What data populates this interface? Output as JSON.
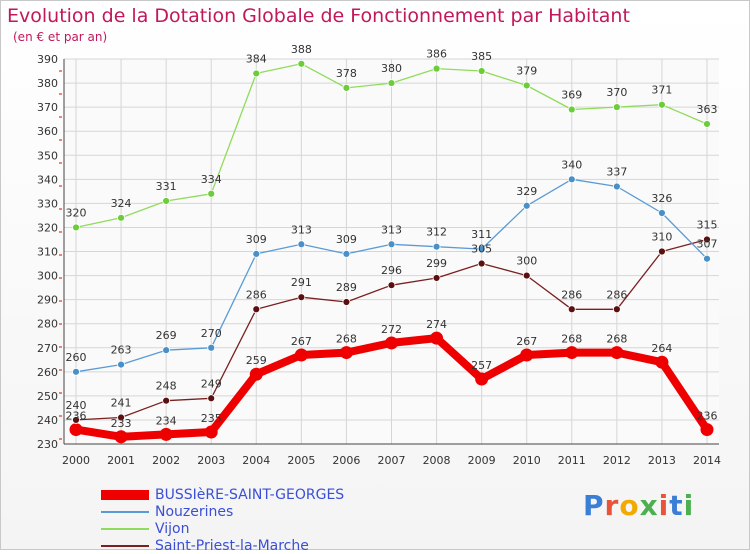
{
  "header": {
    "title": "Evolution de la Dotation Globale de Fonctionnement par Habitant",
    "subtitle": "(en € et par an)"
  },
  "logo": {
    "text": "Proxiti",
    "colors": [
      "#3a7fd5",
      "#e8533a",
      "#f2a900",
      "#4caf50",
      "#e8533a",
      "#3a7fd5",
      "#4caf50"
    ]
  },
  "chart_data": {
    "type": "line",
    "x": [
      "2000",
      "2001",
      "2002",
      "2003",
      "2004",
      "2005",
      "2006",
      "2007",
      "2008",
      "2009",
      "2010",
      "2011",
      "2012",
      "2013",
      "2014"
    ],
    "ylim": [
      230,
      390
    ],
    "yticks": [
      230,
      240,
      250,
      260,
      270,
      280,
      290,
      300,
      310,
      320,
      330,
      340,
      350,
      360,
      370,
      380,
      390
    ],
    "grid": true,
    "legend_position": "bottom-left",
    "series": [
      {
        "name": "BUSSIèRE-SAINT-GEORGES",
        "color": "#ee0000",
        "width": 8,
        "values": [
          236,
          233,
          234,
          235,
          259,
          267,
          268,
          272,
          274,
          257,
          267,
          268,
          268,
          264,
          236
        ],
        "labels": [
          "236",
          "233",
          "234",
          "235",
          "259",
          "267",
          "268",
          "272",
          "274",
          "257",
          "267",
          "268",
          "268",
          "264",
          "236"
        ]
      },
      {
        "name": "Nouzerines",
        "color": "#5b9bd5",
        "width": 1.3,
        "values": [
          260,
          263,
          269,
          270,
          309,
          313,
          309,
          313,
          312,
          311,
          329,
          340,
          337,
          326,
          307
        ],
        "labels": [
          "260",
          "263",
          "269",
          "270",
          "309",
          "313",
          "309",
          "313",
          "312",
          "311",
          "329",
          "340",
          "337",
          "326",
          "307"
        ]
      },
      {
        "name": "Vijon",
        "color": "#8fdc5a",
        "width": 1.3,
        "values": [
          320,
          324,
          331,
          334,
          384,
          388,
          378,
          380,
          386,
          385,
          379,
          369,
          370,
          371,
          363
        ],
        "labels": [
          "320",
          "324",
          "331",
          "334",
          "384",
          "388",
          "378",
          "380",
          "386",
          "385",
          "379",
          "369",
          "370",
          "371",
          "363"
        ]
      },
      {
        "name": "Saint-Priest-la-Marche",
        "color": "#7a2020",
        "width": 1.3,
        "values": [
          240,
          241,
          248,
          249,
          286,
          291,
          289,
          296,
          299,
          305,
          300,
          286,
          286,
          310,
          315
        ],
        "labels": [
          "240",
          "241",
          "248",
          "249",
          "286",
          "291",
          "289",
          "296",
          "299",
          "305",
          "300",
          "286",
          "286",
          "310",
          "315"
        ]
      }
    ]
  }
}
